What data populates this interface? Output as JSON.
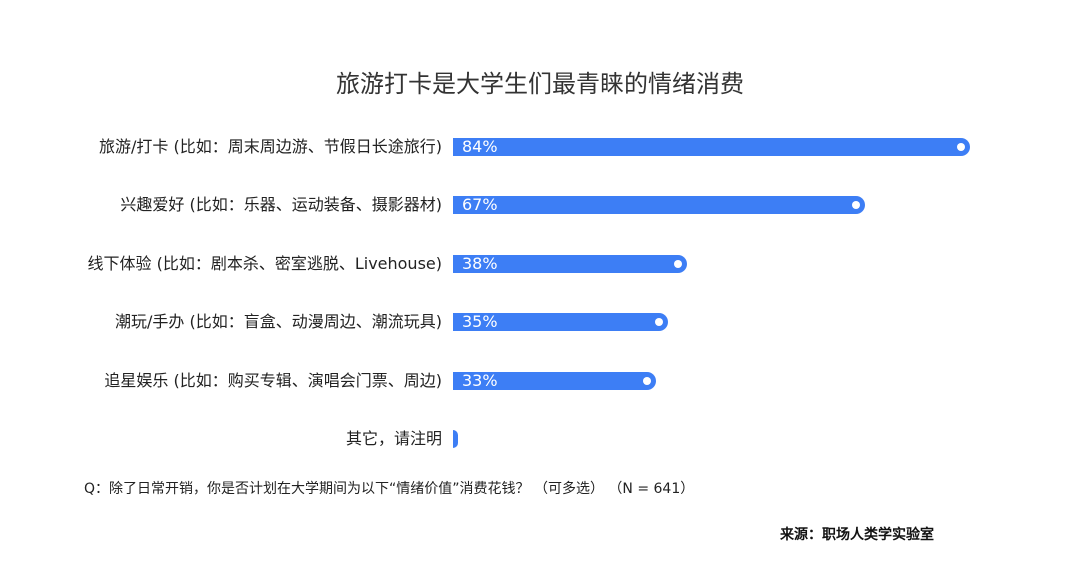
{
  "chart_data": {
    "type": "bar",
    "orientation": "horizontal",
    "title": "旅游打卡是大学生们最青睐的情绪消费",
    "categories": [
      "旅游/打卡 (比如：周末周边游、节假日长途旅行)",
      "兴趣爱好 (比如：乐器、运动装备、摄影器材)",
      "线下体验 (比如：剧本杀、密室逃脱、Livehouse)",
      "潮玩/手办 (比如：盲盒、动漫周边、潮流玩具)",
      "追星娱乐 (比如：购买专辑、演唱会门票、周边)",
      "其它，请注明"
    ],
    "values": [
      84,
      67,
      38,
      35,
      33,
      1
    ],
    "labels": [
      "84%",
      "67%",
      "38%",
      "35%",
      "33%",
      ""
    ],
    "unit": "%",
    "xlim": [
      0,
      100
    ],
    "grid": false,
    "bar_color": "#3d7ef5",
    "question": "Q：除了日常开销，你是否计划在大学期间为以下“情绪价值”消费花钱？ （可多选） （N = 641）",
    "source": "来源：职场人类学实验室"
  }
}
